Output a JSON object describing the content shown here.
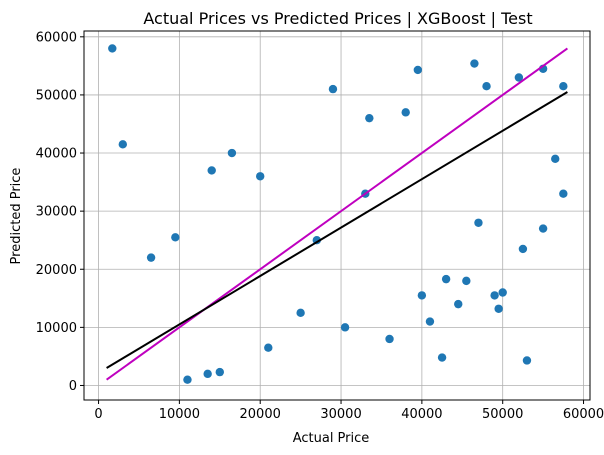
{
  "chart_data": {
    "type": "scatter",
    "title": "Actual Prices vs Predicted Prices | XGBoost | Test",
    "xlabel": "Actual Price",
    "ylabel": "Predicted Price",
    "xlim": [
      -1800,
      60800
    ],
    "ylim": [
      -2500,
      61000
    ],
    "xticks": [
      0,
      10000,
      20000,
      30000,
      40000,
      50000,
      60000
    ],
    "yticks": [
      0,
      10000,
      20000,
      30000,
      40000,
      50000,
      60000
    ],
    "grid": true,
    "colors": {
      "points": "#1f77b4",
      "identity_line": "#bf00bf",
      "fit_line": "#000000",
      "grid": "#b0b0b0"
    },
    "series": [
      {
        "kind": "points",
        "points": [
          [
            1700,
            58000
          ],
          [
            3000,
            41500
          ],
          [
            42500,
            4800
          ],
          [
            53000,
            4300
          ],
          [
            49500,
            13200
          ],
          [
            44500,
            14000
          ],
          [
            39500,
            54300
          ],
          [
            46500,
            55400
          ],
          [
            48000,
            51500
          ],
          [
            52000,
            53000
          ],
          [
            55000,
            54500
          ],
          [
            57500,
            51500
          ],
          [
            56500,
            39000
          ],
          [
            57500,
            33000
          ],
          [
            55000,
            27000
          ],
          [
            45500,
            18000
          ],
          [
            43000,
            18300
          ],
          [
            40000,
            15500
          ],
          [
            41000,
            11000
          ],
          [
            50000,
            16000
          ],
          [
            49000,
            15500
          ],
          [
            52500,
            23500
          ],
          [
            47000,
            28000
          ],
          [
            36000,
            8000
          ],
          [
            30500,
            10000
          ],
          [
            29000,
            51000
          ],
          [
            33500,
            46000
          ],
          [
            16500,
            40000
          ],
          [
            14000,
            37000
          ],
          [
            20000,
            36000
          ],
          [
            11000,
            1000
          ],
          [
            13500,
            2000
          ],
          [
            15000,
            2300
          ],
          [
            27000,
            25000
          ],
          [
            33000,
            33000
          ],
          [
            38000,
            47000
          ],
          [
            25000,
            12500
          ],
          [
            21000,
            6500
          ],
          [
            9500,
            25500
          ],
          [
            6500,
            22000
          ]
        ]
      },
      {
        "kind": "line",
        "name": "identity",
        "points": [
          [
            1000,
            1000
          ],
          [
            58000,
            58000
          ]
        ]
      },
      {
        "kind": "line",
        "name": "fit",
        "points": [
          [
            1000,
            3000
          ],
          [
            58000,
            50500
          ]
        ]
      }
    ]
  }
}
